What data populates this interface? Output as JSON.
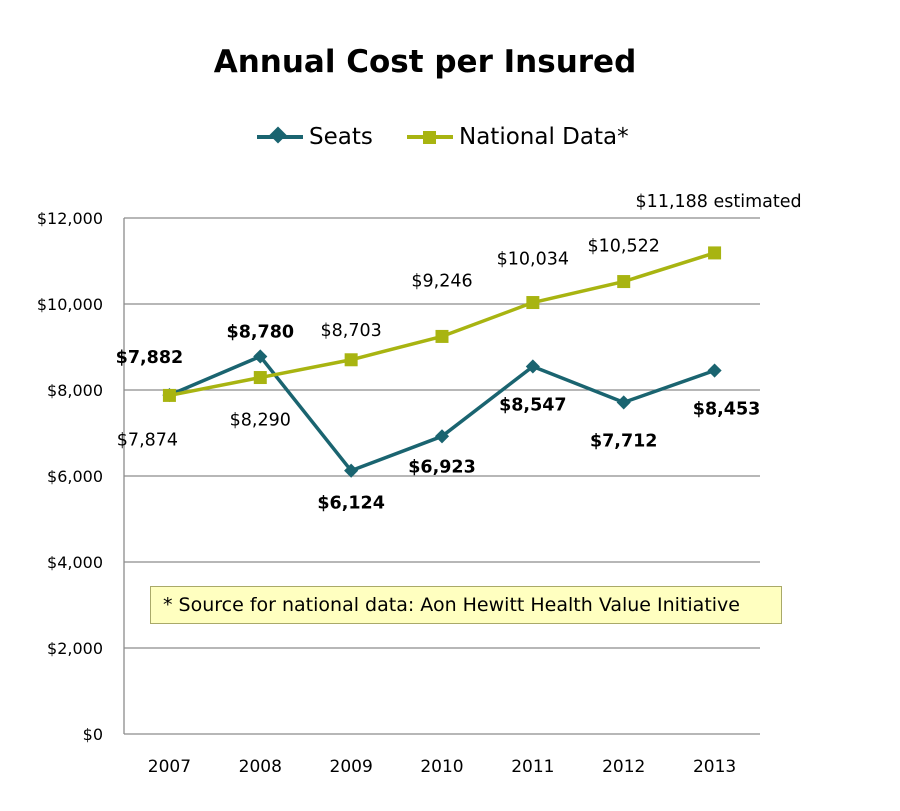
{
  "chart_data": {
    "type": "line",
    "title": "Annual Cost per Insured",
    "x": [
      "2007",
      "2008",
      "2009",
      "2010",
      "2011",
      "2012",
      "2013"
    ],
    "ylim": [
      0,
      12000
    ],
    "yticks": [
      0,
      2000,
      4000,
      6000,
      8000,
      10000,
      12000
    ],
    "ytick_labels": [
      "$0",
      "$2,000",
      "$4,000",
      "$6,000",
      "$8,000",
      "$10,000",
      "$12,000"
    ],
    "grid": true,
    "legend_position": "top",
    "series": [
      {
        "name": "Seats",
        "values": [
          7882,
          8780,
          6124,
          6923,
          8547,
          7712,
          8453
        ],
        "labels": [
          "$7,882",
          "$8,780",
          "$6,124",
          "$6,923",
          "$8,547",
          "$7,712",
          "$8,453"
        ],
        "color": "#1a6470",
        "marker": "diamond",
        "label_weight": "bold"
      },
      {
        "name": "National Data*",
        "values": [
          7874,
          8290,
          8703,
          9246,
          10034,
          10522,
          11188
        ],
        "labels": [
          "$7,874",
          "$8,290",
          "$8,703",
          "$9,246",
          "$10,034",
          "$10,522",
          "$11,188 estimated"
        ],
        "color": "#a8b411",
        "marker": "square",
        "label_weight": "normal"
      }
    ],
    "annotation": "* Source for national data:  Aon Hewitt Health Value Initiative"
  }
}
